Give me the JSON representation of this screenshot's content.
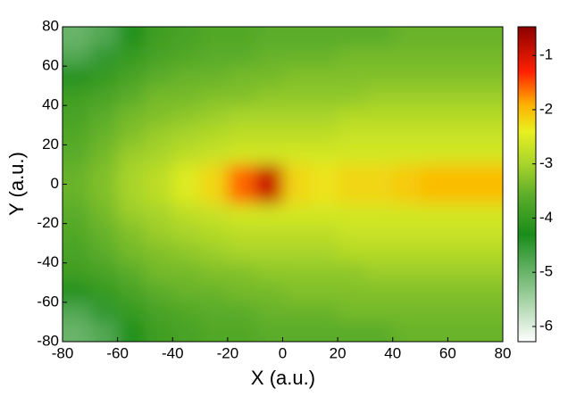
{
  "chart_data": {
    "type": "heatmap",
    "xlabel": "X (a.u.)",
    "ylabel": "Y (a.u.)",
    "x": [
      -75,
      -65,
      -55,
      -45,
      -35,
      -25,
      -15,
      -5,
      5,
      15,
      25,
      35,
      45,
      55,
      65,
      75
    ],
    "y": [
      75,
      65,
      55,
      45,
      35,
      25,
      15,
      5,
      -5,
      -15,
      -25,
      -35,
      -45,
      -55,
      -65,
      -75
    ],
    "z": [
      [
        -5.0,
        -4.8,
        -4.2,
        -3.9,
        -3.8,
        -3.7,
        -3.7,
        -3.6,
        -3.6,
        -3.6,
        -3.6,
        -3.6,
        -3.5,
        -3.5,
        -3.5,
        -3.5
      ],
      [
        -4.8,
        -4.5,
        -4.0,
        -3.8,
        -3.7,
        -3.6,
        -3.6,
        -3.5,
        -3.5,
        -3.5,
        -3.4,
        -3.4,
        -3.4,
        -3.4,
        -3.4,
        -3.4
      ],
      [
        -4.2,
        -4.0,
        -3.8,
        -3.6,
        -3.5,
        -3.5,
        -3.4,
        -3.4,
        -3.3,
        -3.3,
        -3.3,
        -3.3,
        -3.3,
        -3.3,
        -3.3,
        -3.3
      ],
      [
        -3.9,
        -3.8,
        -3.6,
        -3.4,
        -3.4,
        -3.3,
        -3.3,
        -3.2,
        -3.2,
        -3.2,
        -3.2,
        -3.1,
        -3.1,
        -3.1,
        -3.1,
        -3.1
      ],
      [
        -3.8,
        -3.6,
        -3.4,
        -3.3,
        -3.2,
        -3.1,
        -3.0,
        -3.0,
        -3.0,
        -3.0,
        -2.9,
        -2.9,
        -2.9,
        -2.9,
        -2.9,
        -2.9
      ],
      [
        -3.7,
        -3.5,
        -3.3,
        -3.1,
        -3.0,
        -2.9,
        -2.8,
        -2.8,
        -2.8,
        -2.8,
        -2.7,
        -2.7,
        -2.7,
        -2.7,
        -2.7,
        -2.7
      ],
      [
        -3.6,
        -3.4,
        -3.1,
        -3.0,
        -2.8,
        -2.7,
        -2.6,
        -2.6,
        -2.6,
        -2.6,
        -2.6,
        -2.6,
        -2.6,
        -2.6,
        -2.6,
        -2.6
      ],
      [
        -3.5,
        -3.3,
        -3.0,
        -2.8,
        -2.5,
        -2.2,
        -1.6,
        -0.9,
        -2.2,
        -2.3,
        -2.2,
        -2.2,
        -2.1,
        -2.0,
        -2.0,
        -2.0
      ],
      [
        -3.5,
        -3.3,
        -3.0,
        -2.8,
        -2.5,
        -2.2,
        -1.6,
        -0.9,
        -2.2,
        -2.3,
        -2.2,
        -2.2,
        -2.1,
        -2.0,
        -2.0,
        -2.0
      ],
      [
        -3.6,
        -3.4,
        -3.1,
        -3.0,
        -2.8,
        -2.7,
        -2.6,
        -2.6,
        -2.6,
        -2.6,
        -2.6,
        -2.6,
        -2.6,
        -2.6,
        -2.6,
        -2.6
      ],
      [
        -3.7,
        -3.5,
        -3.3,
        -3.1,
        -3.0,
        -2.9,
        -2.8,
        -2.8,
        -2.8,
        -2.8,
        -2.7,
        -2.7,
        -2.7,
        -2.7,
        -2.7,
        -2.7
      ],
      [
        -3.8,
        -3.6,
        -3.4,
        -3.3,
        -3.2,
        -3.1,
        -3.0,
        -3.0,
        -3.0,
        -3.0,
        -2.9,
        -2.9,
        -2.9,
        -2.9,
        -2.9,
        -2.9
      ],
      [
        -3.9,
        -3.8,
        -3.6,
        -3.4,
        -3.4,
        -3.3,
        -3.3,
        -3.2,
        -3.2,
        -3.2,
        -3.2,
        -3.1,
        -3.1,
        -3.1,
        -3.1,
        -3.1
      ],
      [
        -4.2,
        -4.0,
        -3.8,
        -3.6,
        -3.5,
        -3.5,
        -3.4,
        -3.4,
        -3.3,
        -3.3,
        -3.3,
        -3.3,
        -3.3,
        -3.3,
        -3.3,
        -3.3
      ],
      [
        -4.8,
        -4.5,
        -4.0,
        -3.8,
        -3.7,
        -3.6,
        -3.6,
        -3.5,
        -3.5,
        -3.5,
        -3.4,
        -3.4,
        -3.4,
        -3.4,
        -3.4,
        -3.4
      ],
      [
        -5.0,
        -4.8,
        -4.2,
        -3.9,
        -3.8,
        -3.7,
        -3.7,
        -3.6,
        -3.6,
        -3.6,
        -3.6,
        -3.6,
        -3.5,
        -3.5,
        -3.5,
        -3.5
      ]
    ],
    "xlim": [
      -80,
      80
    ],
    "ylim": [
      -80,
      80
    ],
    "xticks": [
      -80,
      -60,
      -40,
      -20,
      0,
      20,
      40,
      60,
      80
    ],
    "yticks": [
      -80,
      -60,
      -40,
      -20,
      0,
      20,
      40,
      60,
      80
    ],
    "colorbar": {
      "lim": [
        -6.28,
        -0.47
      ],
      "ticks": [
        -6,
        -5,
        -4,
        -3,
        -2,
        -1
      ]
    },
    "colorscale": [
      [
        -6.28,
        "#ffffff"
      ],
      [
        -5.2,
        "#7fbf7f"
      ],
      [
        -4.3,
        "#1a8c1a"
      ],
      [
        -3.6,
        "#5aac2a"
      ],
      [
        -3.0,
        "#a8d42a"
      ],
      [
        -2.4,
        "#e8f020"
      ],
      [
        -1.9,
        "#ffb000"
      ],
      [
        -1.3,
        "#ff2000"
      ],
      [
        -0.47,
        "#8b0000"
      ]
    ]
  }
}
